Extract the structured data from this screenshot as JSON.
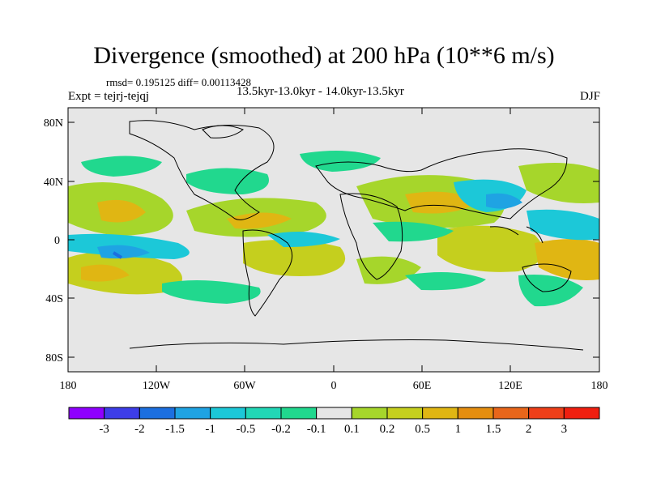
{
  "title": "Divergence (smoothed) at 200 hPa (10**6 m/s)",
  "stats": "rmsd= 0.195125 diff= 0.00113428",
  "experiment": "Expt = tejrj-tejqj",
  "period": "13.5kyr-13.0kyr - 14.0kyr-13.5kyr",
  "season": "DJF",
  "lat_ticks": [
    "80N",
    "40N",
    "0",
    "40S",
    "80S"
  ],
  "lon_ticks": [
    "180",
    "120W",
    "60W",
    "0",
    "60E",
    "120E",
    "180"
  ],
  "colorbar": {
    "labels": [
      "-3",
      "-2",
      "-1.5",
      "-1",
      "-0.5",
      "-0.2",
      "-0.1",
      "0.1",
      "0.2",
      "0.5",
      "1",
      "1.5",
      "2",
      "3"
    ],
    "colors": [
      "#8f00ff",
      "#3d3de8",
      "#1c6fe0",
      "#1fa3e3",
      "#1cc8d8",
      "#22d7b6",
      "#21d88e",
      "#e6e6e6",
      "#a6d62b",
      "#c5cf1e",
      "#e0b613",
      "#e58e10",
      "#e8661a",
      "#ee3f19",
      "#f01f10"
    ]
  },
  "colors": {
    "background": "#e6e6e6",
    "coast": "#000000"
  }
}
